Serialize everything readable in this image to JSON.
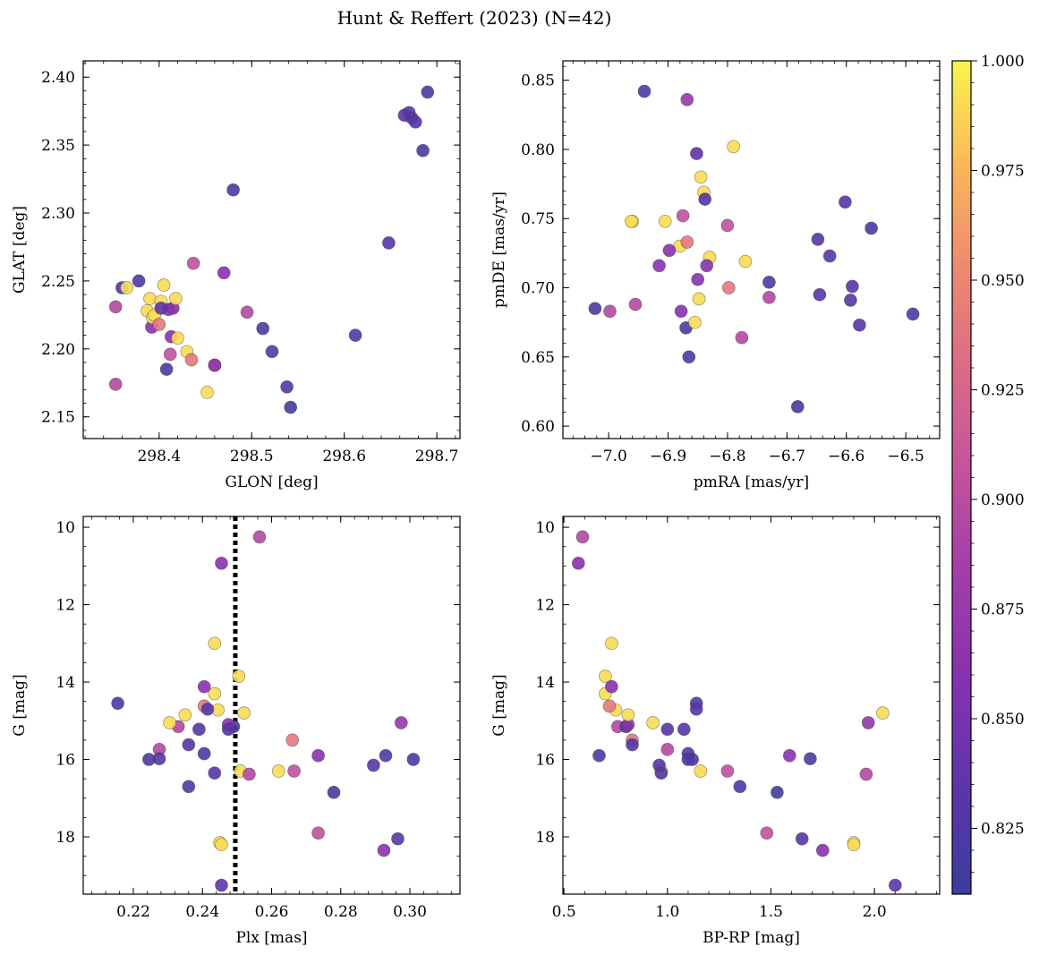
{
  "chart_data": {
    "title": "Hunt & Reffert (2023) (N=42)",
    "colorbar": {
      "range": [
        0.81,
        1.0
      ],
      "ticks": [
        0.825,
        0.85,
        0.875,
        0.9,
        0.925,
        0.95,
        0.975,
        1.0
      ],
      "tick_labels": [
        "0.825",
        "0.850",
        "0.875",
        "0.900",
        "0.925",
        "0.950",
        "0.975",
        "1.000"
      ],
      "colormap": "plasma"
    },
    "stars": [
      {
        "glon": 298.353,
        "glat": 2.174,
        "pmra": -6.998,
        "pmde": 0.683,
        "plx": 0.2275,
        "g": 15.74,
        "bprp": 1.0,
        "prob": 0.895
      },
      {
        "glon": 298.353,
        "glat": 2.231,
        "pmra": -6.955,
        "pmde": 0.688,
        "plx": 0.233,
        "g": 15.15,
        "bprp": 0.76,
        "prob": 0.895
      },
      {
        "glon": 298.36,
        "glat": 2.245,
        "pmra": -6.87,
        "pmde": 0.671,
        "plx": 0.249,
        "g": 15.15,
        "bprp": 0.8,
        "prob": 0.825
      },
      {
        "glon": 298.365,
        "glat": 2.245,
        "pmra": -6.96,
        "pmde": 0.748,
        "plx": 0.251,
        "g": 16.3,
        "bprp": 0.97,
        "prob": 0.99
      },
      {
        "glon": 298.378,
        "glat": 2.25,
        "pmra": -6.94,
        "pmde": 0.842,
        "plx": 0.2155,
        "g": 14.55,
        "bprp": 1.14,
        "prob": 0.825
      },
      {
        "glon": 298.387,
        "glat": 2.228,
        "pmra": -6.905,
        "pmde": 0.748,
        "plx": 0.245,
        "g": 18.15,
        "bprp": 1.9,
        "prob": 0.99
      },
      {
        "glon": 298.39,
        "glat": 2.237,
        "pmra": -6.88,
        "pmde": 0.73,
        "plx": 0.2305,
        "g": 15.05,
        "bprp": 0.93,
        "prob": 0.99
      },
      {
        "glon": 298.392,
        "glat": 2.216,
        "pmra": -6.915,
        "pmde": 0.716,
        "plx": 0.2925,
        "g": 18.35,
        "bprp": 1.75,
        "prob": 0.86
      },
      {
        "glon": 298.393,
        "glat": 2.223,
        "pmra": -6.848,
        "pmde": 0.692,
        "plx": 0.262,
        "g": 16.3,
        "bprp": 1.16,
        "prob": 0.99
      },
      {
        "glon": 298.395,
        "glat": 2.225,
        "pmra": -6.855,
        "pmde": 0.675,
        "plx": 0.2445,
        "g": 14.72,
        "bprp": 0.75,
        "prob": 0.99
      },
      {
        "glon": 298.4,
        "glat": 2.218,
        "pmra": -6.868,
        "pmde": 0.733,
        "plx": 0.2405,
        "g": 14.62,
        "bprp": 0.72,
        "prob": 0.94
      },
      {
        "glon": 298.402,
        "glat": 2.235,
        "pmra": -6.83,
        "pmde": 0.722,
        "plx": 0.2435,
        "g": 14.3,
        "bprp": 0.7,
        "prob": 0.99
      },
      {
        "glon": 298.405,
        "glat": 2.247,
        "pmra": -6.845,
        "pmde": 0.78,
        "plx": 0.2505,
        "g": 13.85,
        "bprp": 0.7,
        "prob": 0.99
      },
      {
        "glon": 298.408,
        "glat": 2.185,
        "pmra": -6.865,
        "pmde": 0.65,
        "plx": 0.2405,
        "g": 15.85,
        "bprp": 1.1,
        "prob": 0.825
      },
      {
        "glon": 298.41,
        "glat": 2.229,
        "pmra": -6.898,
        "pmde": 0.727,
        "plx": 0.2405,
        "g": 14.12,
        "bprp": 0.73,
        "prob": 0.86
      },
      {
        "glon": 298.412,
        "glat": 2.196,
        "pmra": -6.8,
        "pmde": 0.745,
        "plx": 0.2665,
        "g": 16.3,
        "bprp": 1.29,
        "prob": 0.905
      },
      {
        "glon": 298.413,
        "glat": 2.209,
        "pmra": -6.878,
        "pmde": 0.683,
        "plx": 0.2475,
        "g": 15.1,
        "bprp": 0.81,
        "prob": 0.86
      },
      {
        "glon": 298.415,
        "glat": 2.23,
        "pmra": -6.85,
        "pmde": 0.706,
        "plx": 0.2455,
        "g": 10.93,
        "bprp": 0.57,
        "prob": 0.86
      },
      {
        "glon": 298.418,
        "glat": 2.237,
        "pmra": -6.77,
        "pmde": 0.719,
        "plx": 0.252,
        "g": 14.8,
        "bprp": 2.04,
        "prob": 0.99
      },
      {
        "glon": 298.42,
        "glat": 2.208,
        "pmra": -6.84,
        "pmde": 0.769,
        "plx": 0.235,
        "g": 14.85,
        "bprp": 0.81,
        "prob": 0.99
      },
      {
        "glon": 298.43,
        "glat": 2.198,
        "pmra": -6.79,
        "pmde": 0.802,
        "plx": 0.2435,
        "g": 13.0,
        "bprp": 0.73,
        "prob": 0.99
      },
      {
        "glon": 298.435,
        "glat": 2.192,
        "pmra": -6.798,
        "pmde": 0.7,
        "plx": 0.266,
        "g": 15.5,
        "bprp": 0.83,
        "prob": 0.94
      },
      {
        "glon": 298.437,
        "glat": 2.263,
        "pmra": -6.875,
        "pmde": 0.752,
        "plx": 0.2735,
        "g": 17.9,
        "bprp": 1.48,
        "prob": 0.905
      },
      {
        "glon": 298.452,
        "glat": 2.168,
        "pmra": -6.962,
        "pmde": 0.748,
        "plx": 0.2455,
        "g": 18.2,
        "bprp": 1.9,
        "prob": 0.99
      },
      {
        "glon": 298.46,
        "glat": 2.188,
        "pmra": -6.73,
        "pmde": 0.693,
        "plx": 0.2535,
        "g": 16.38,
        "bprp": 1.96,
        "prob": 0.895
      },
      {
        "glon": 298.47,
        "glat": 2.256,
        "pmra": -6.835,
        "pmde": 0.716,
        "plx": 0.2735,
        "g": 15.9,
        "bprp": 1.59,
        "prob": 0.86
      },
      {
        "glon": 298.48,
        "glat": 2.317,
        "pmra": -6.838,
        "pmde": 0.764,
        "plx": 0.236,
        "g": 16.7,
        "bprp": 1.35,
        "prob": 0.825
      },
      {
        "glon": 298.495,
        "glat": 2.227,
        "pmra": -6.776,
        "pmde": 0.664,
        "plx": 0.2565,
        "g": 10.25,
        "bprp": 0.59,
        "prob": 0.895
      },
      {
        "glon": 298.512,
        "glat": 2.215,
        "pmra": -6.73,
        "pmde": 0.704,
        "plx": 0.2275,
        "g": 15.98,
        "bprp": 1.69,
        "prob": 0.825
      },
      {
        "glon": 298.522,
        "glat": 2.198,
        "pmra": -6.645,
        "pmde": 0.695,
        "plx": 0.236,
        "g": 15.62,
        "bprp": 0.83,
        "prob": 0.83
      },
      {
        "glon": 298.538,
        "glat": 2.172,
        "pmra": -6.648,
        "pmde": 0.735,
        "plx": 0.2435,
        "g": 16.35,
        "bprp": 0.97,
        "prob": 0.83
      },
      {
        "glon": 298.542,
        "glat": 2.157,
        "pmra": -6.682,
        "pmde": 0.614,
        "plx": 0.278,
        "g": 16.85,
        "bprp": 1.53,
        "prob": 0.815
      },
      {
        "glon": 298.612,
        "glat": 2.21,
        "pmra": -7.023,
        "pmde": 0.685,
        "plx": 0.301,
        "g": 16.0,
        "bprp": 1.12,
        "prob": 0.825
      },
      {
        "glon": 298.648,
        "glat": 2.278,
        "pmra": -6.628,
        "pmde": 0.723,
        "plx": 0.2415,
        "g": 14.7,
        "bprp": 1.14,
        "prob": 0.83
      },
      {
        "glon": 298.665,
        "glat": 2.372,
        "pmra": -6.59,
        "pmde": 0.701,
        "plx": 0.239,
        "g": 15.22,
        "bprp": 1.08,
        "prob": 0.83
      },
      {
        "glon": 298.67,
        "glat": 2.374,
        "pmra": -6.593,
        "pmde": 0.691,
        "plx": 0.2895,
        "g": 16.15,
        "bprp": 0.96,
        "prob": 0.83
      },
      {
        "glon": 298.673,
        "glat": 2.37,
        "pmra": -6.578,
        "pmde": 0.673,
        "plx": 0.2475,
        "g": 15.22,
        "bprp": 1.0,
        "prob": 0.83
      },
      {
        "glon": 298.677,
        "glat": 2.367,
        "pmra": -6.602,
        "pmde": 0.762,
        "plx": 0.2965,
        "g": 18.05,
        "bprp": 1.65,
        "prob": 0.83
      },
      {
        "glon": 298.685,
        "glat": 2.346,
        "pmra": -6.558,
        "pmde": 0.743,
        "plx": 0.293,
        "g": 15.9,
        "bprp": 0.67,
        "prob": 0.825
      },
      {
        "glon": 298.69,
        "glat": 2.389,
        "pmra": -6.488,
        "pmde": 0.681,
        "plx": 0.2245,
        "g": 16.0,
        "bprp": 1.1,
        "prob": 0.825
      },
      {
        "glon": 298.46,
        "glat": 2.188,
        "pmra": -6.868,
        "pmde": 0.836,
        "plx": 0.2975,
        "g": 15.05,
        "bprp": 1.97,
        "prob": 0.87
      },
      {
        "glon": 298.402,
        "glat": 2.23,
        "pmra": -6.852,
        "pmde": 0.797,
        "plx": 0.2455,
        "g": 19.25,
        "bprp": 2.1,
        "prob": 0.835
      }
    ],
    "panels": [
      {
        "type": "scatter",
        "x_key": "glon",
        "y_key": "glat",
        "xlabel": "GLON [deg]",
        "ylabel": "GLAT [deg]",
        "xlim": [
          298.318,
          298.725
        ],
        "ylim": [
          2.134,
          2.412
        ],
        "y_inverted": false,
        "xticks": [
          298.4,
          298.5,
          298.6,
          298.7
        ],
        "xtick_labels": [
          "298.4",
          "298.5",
          "298.6",
          "298.7"
        ],
        "yticks": [
          2.15,
          2.2,
          2.25,
          2.3,
          2.35,
          2.4
        ],
        "ytick_labels": [
          "2.15",
          "2.20",
          "2.25",
          "2.30",
          "2.35",
          "2.40"
        ]
      },
      {
        "type": "scatter",
        "x_key": "pmra",
        "y_key": "pmde",
        "xlabel": "pmRA [mas/yr]",
        "ylabel": "pmDE [mas/yr]",
        "xlim": [
          -7.077,
          -6.443
        ],
        "ylim": [
          0.591,
          0.864
        ],
        "y_inverted": false,
        "xticks": [
          -7.0,
          -6.9,
          -6.8,
          -6.7,
          -6.6,
          -6.5
        ],
        "xtick_labels": [
          "−7.0",
          "−6.9",
          "−6.8",
          "−6.7",
          "−6.6",
          "−6.5"
        ],
        "yticks": [
          0.6,
          0.65,
          0.7,
          0.75,
          0.8,
          0.85
        ],
        "ytick_labels": [
          "0.60",
          "0.65",
          "0.70",
          "0.75",
          "0.80",
          "0.85"
        ]
      },
      {
        "type": "scatter",
        "x_key": "plx",
        "y_key": "g",
        "xlabel": "Plx [mas]",
        "ylabel": "G [mag]",
        "xlim": [
          0.2055,
          0.3145
        ],
        "ylim": [
          9.72,
          19.48
        ],
        "y_inverted": true,
        "xticks": [
          0.22,
          0.24,
          0.26,
          0.28,
          0.3
        ],
        "xtick_labels": [
          "0.22",
          "0.24",
          "0.26",
          "0.28",
          "0.30"
        ],
        "yticks": [
          10,
          12,
          14,
          16,
          18
        ],
        "ytick_labels": [
          "10",
          "12",
          "14",
          "16",
          "18"
        ],
        "vline": 0.2495
      },
      {
        "type": "scatter",
        "x_key": "bprp",
        "y_key": "g",
        "xlabel": "BP-RP [mag]",
        "ylabel": "G [mag]",
        "xlim": [
          0.495,
          2.315
        ],
        "ylim": [
          9.72,
          19.48
        ],
        "y_inverted": true,
        "xticks": [
          0.5,
          1.0,
          1.5,
          2.0
        ],
        "xtick_labels": [
          "0.5",
          "1.0",
          "1.5",
          "2.0"
        ],
        "yticks": [
          10,
          12,
          14,
          16,
          18
        ],
        "ytick_labels": [
          "10",
          "12",
          "14",
          "16",
          "18"
        ]
      }
    ]
  }
}
